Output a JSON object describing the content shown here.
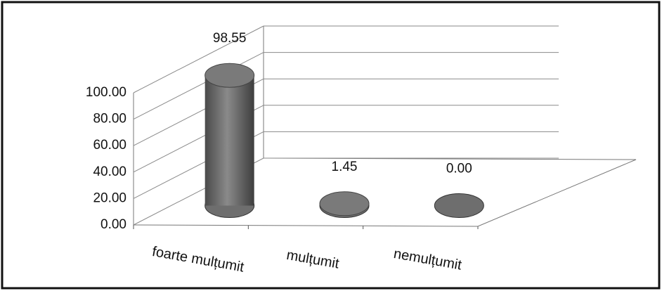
{
  "chart_data": {
    "type": "bar3d",
    "categories": [
      "foarte mulțumit",
      "mulțumit",
      "nemulțumit"
    ],
    "values": [
      98.55,
      1.45,
      0
    ],
    "value_labels": [
      "98.55",
      "1.45",
      "0.00"
    ],
    "color": "#6e6e6e",
    "ylim": [
      0,
      100
    ],
    "yticks": [
      {
        "value": 0,
        "label": "0.00"
      },
      {
        "value": 20,
        "label": "20.00"
      },
      {
        "value": 40,
        "label": "40.00"
      },
      {
        "value": 60,
        "label": "60.00"
      },
      {
        "value": 80,
        "label": "80.00"
      },
      {
        "value": 100,
        "label": "100.00"
      }
    ],
    "grid": true
  }
}
